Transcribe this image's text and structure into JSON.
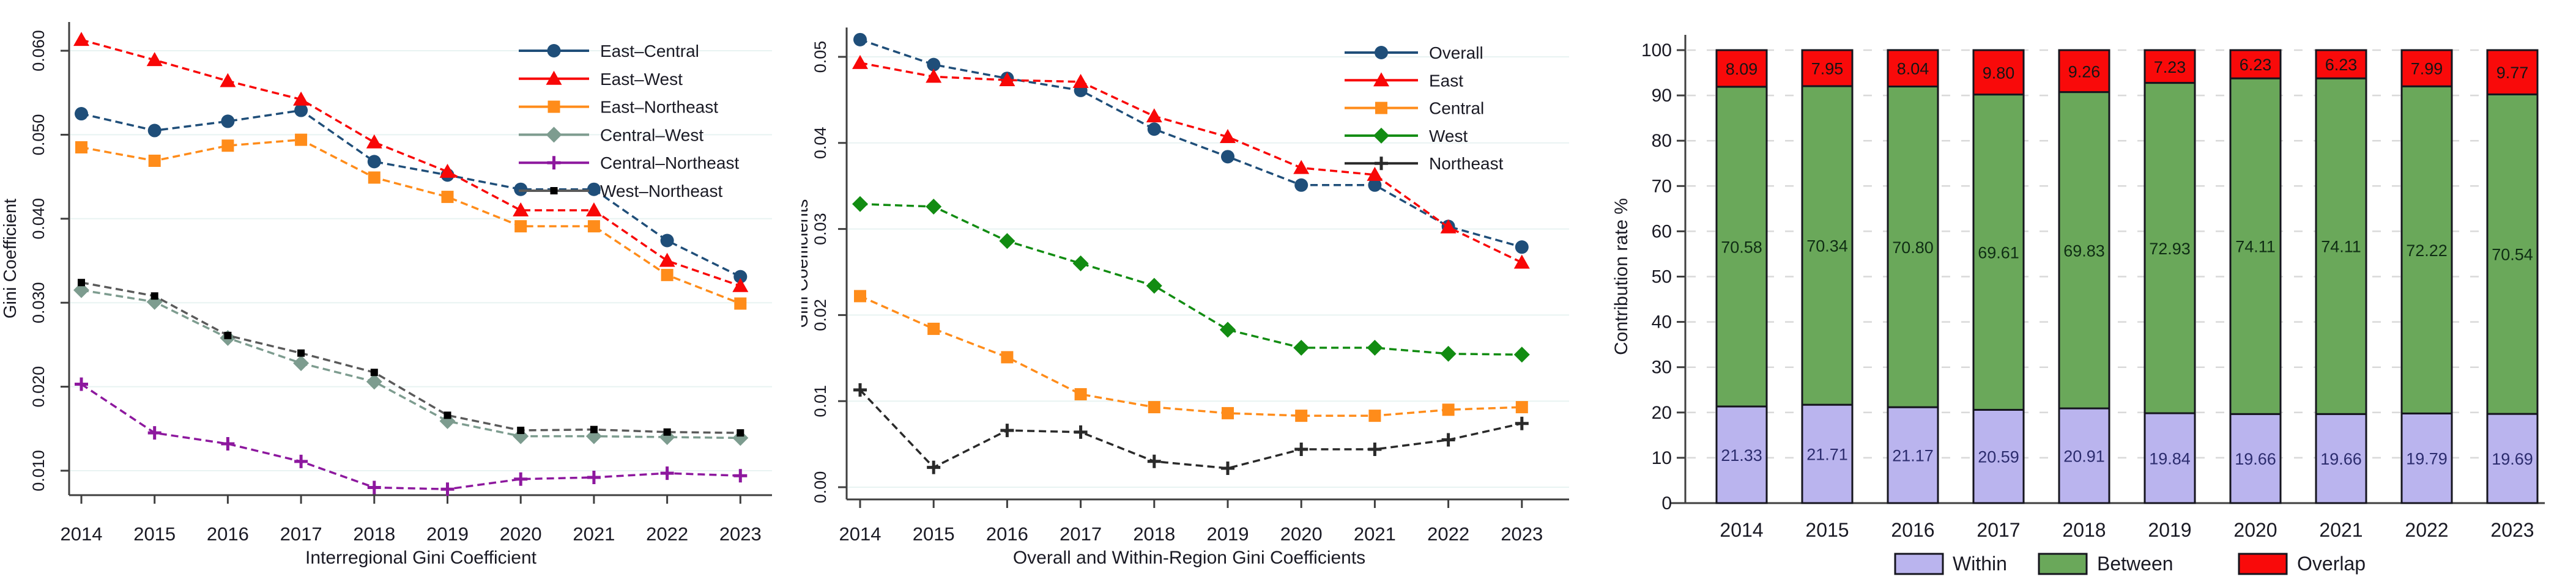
{
  "figure": {
    "background": "#ffffff"
  },
  "theme": {
    "grid_line": "#e8f3f2",
    "grid_bar": "#d9d9d9",
    "axis": "#3f3f3f",
    "text": "#1a1a24",
    "bar_border": "#15151e"
  },
  "chart_data": [
    {
      "type": "line",
      "panel": "interregional",
      "xlabel": "Interregional Gini Coefficient",
      "ylabel": "Gini Coefficient",
      "x": [
        "2014",
        "2015",
        "2016",
        "2017",
        "2018",
        "2019",
        "2020",
        "2021",
        "2022",
        "2023"
      ],
      "ylim": [
        0.005,
        0.064
      ],
      "ytick_values": [
        0.01,
        0.02,
        0.03,
        0.04,
        0.05,
        0.06
      ],
      "ytick_labels": [
        "0.010",
        "0.020",
        "0.030",
        "0.040",
        "0.050",
        "0.060"
      ],
      "grid": true,
      "legend_position": "top-right",
      "series": [
        {
          "name": "East–Central",
          "color": "#1f4e79",
          "marker": "circle",
          "values": [
            0.0525,
            0.0505,
            0.0516,
            0.0529,
            0.0468,
            0.0452,
            0.0435,
            0.0435,
            0.0374,
            0.0331
          ]
        },
        {
          "name": "East–West",
          "color": "#f80707",
          "marker": "triangle",
          "values": [
            0.0613,
            0.0589,
            0.0564,
            0.0542,
            0.0491,
            0.0456,
            0.041,
            0.041,
            0.035,
            0.032
          ]
        },
        {
          "name": "East–Northeast",
          "color": "#ff8c1a",
          "marker": "square",
          "values": [
            0.0485,
            0.0469,
            0.0487,
            0.0494,
            0.0449,
            0.0426,
            0.0391,
            0.0391,
            0.0333,
            0.0299
          ]
        },
        {
          "name": "Central–West",
          "color": "#7d9c8f",
          "marker": "diamond",
          "values": [
            0.0315,
            0.0301,
            0.0258,
            0.0228,
            0.0206,
            0.0159,
            0.0141,
            0.0141,
            0.014,
            0.0139
          ]
        },
        {
          "name": "Central–Northeast",
          "color": "#8d189e",
          "marker": "plus",
          "values": [
            0.0203,
            0.0145,
            0.0132,
            0.0111,
            0.008,
            0.0078,
            0.009,
            0.0092,
            0.0097,
            0.0094
          ]
        },
        {
          "name": "West–Northeast",
          "color": "#5a5a5a",
          "marker": "small-square",
          "marker_color": "#000000",
          "values": [
            0.0324,
            0.0308,
            0.0261,
            0.024,
            0.0217,
            0.0166,
            0.0148,
            0.0149,
            0.0146,
            0.0145
          ]
        }
      ]
    },
    {
      "type": "line",
      "panel": "within-region",
      "xlabel": "Overall and Within-Region Gini Coefficients",
      "ylabel": "Gini Coefficients",
      "x": [
        "2014",
        "2015",
        "2016",
        "2017",
        "2018",
        "2019",
        "2020",
        "2021",
        "2022",
        "2023"
      ],
      "ylim": [
        -0.002,
        0.056
      ],
      "ytick_values": [
        0.0,
        0.01,
        0.02,
        0.03,
        0.04,
        0.05
      ],
      "ytick_labels": [
        "0.00",
        "0.01",
        "0.02",
        "0.03",
        "0.04",
        "0.05"
      ],
      "grid": true,
      "legend_position": "top-right",
      "series": [
        {
          "name": "Overall",
          "color": "#1f4e79",
          "marker": "circle",
          "values": [
            0.052,
            0.0491,
            0.0475,
            0.0461,
            0.0416,
            0.0384,
            0.0351,
            0.0351,
            0.0303,
            0.0279
          ]
        },
        {
          "name": "East",
          "color": "#f80707",
          "marker": "triangle",
          "values": [
            0.0493,
            0.0477,
            0.0473,
            0.0471,
            0.0431,
            0.0407,
            0.0371,
            0.0363,
            0.0302,
            0.0261
          ]
        },
        {
          "name": "Central",
          "color": "#ff8c1a",
          "marker": "square",
          "values": [
            0.0222,
            0.0184,
            0.0151,
            0.0108,
            0.0093,
            0.0086,
            0.0083,
            0.0083,
            0.009,
            0.0093
          ]
        },
        {
          "name": "West",
          "color": "#128c12",
          "marker": "diamond",
          "values": [
            0.0329,
            0.0326,
            0.0286,
            0.026,
            0.0234,
            0.0183,
            0.0162,
            0.0162,
            0.0155,
            0.0154
          ]
        },
        {
          "name": "Northeast",
          "color": "#2a2a2a",
          "marker": "plus",
          "values": [
            0.0113,
            0.0023,
            0.0066,
            0.0064,
            0.003,
            0.0022,
            0.0044,
            0.0044,
            0.0055,
            0.0074
          ]
        }
      ]
    },
    {
      "type": "bar",
      "stacked": true,
      "panel": "contribution",
      "ylabel": "Contribution rate %",
      "categories": [
        "2014",
        "2015",
        "2016",
        "2017",
        "2018",
        "2019",
        "2020",
        "2021",
        "2022",
        "2023"
      ],
      "ylim": [
        0,
        100
      ],
      "ytick_values": [
        0,
        10,
        20,
        30,
        40,
        50,
        60,
        70,
        80,
        90,
        100
      ],
      "grid": true,
      "legend_position": "bottom",
      "series": [
        {
          "name": "Within",
          "color": "#bab4ee",
          "label_color": "#2c2c6e",
          "values": [
            21.33,
            21.71,
            21.17,
            20.59,
            20.91,
            19.84,
            19.66,
            19.66,
            19.79,
            19.69
          ]
        },
        {
          "name": "Between",
          "color": "#6aa85a",
          "label_color": "#0f2d14",
          "values": [
            70.58,
            70.34,
            70.8,
            69.61,
            69.83,
            72.93,
            74.11,
            74.11,
            72.22,
            70.54
          ]
        },
        {
          "name": "Overlap",
          "color": "#f90a0a",
          "label_color": "#151515",
          "values": [
            8.09,
            7.95,
            8.04,
            9.8,
            9.26,
            7.23,
            6.23,
            6.23,
            7.99,
            9.77
          ]
        }
      ]
    }
  ]
}
